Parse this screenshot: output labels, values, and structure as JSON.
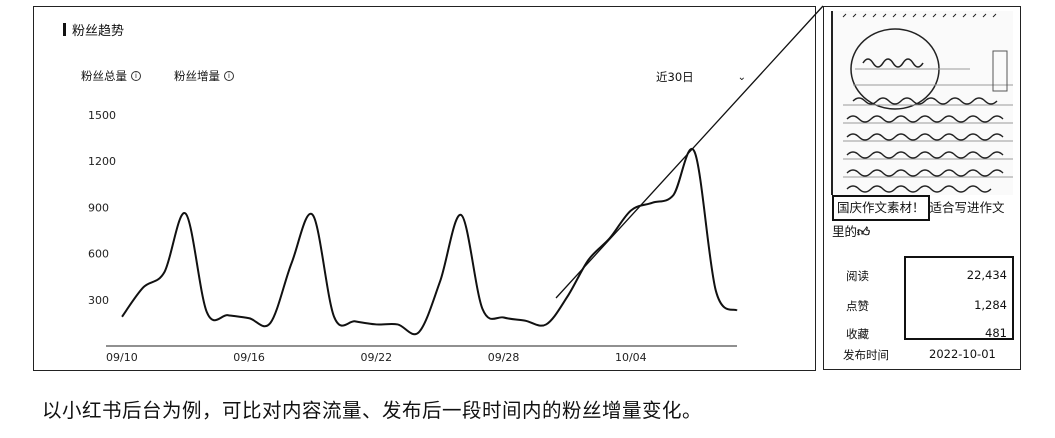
{
  "dashboard": {
    "section_title": "粉丝趋势",
    "tabs": [
      {
        "label": "粉丝总量",
        "info_icon": "info-circle-icon"
      },
      {
        "label": "粉丝增量",
        "info_icon": "info-circle-icon"
      }
    ],
    "range_select": {
      "value": "近30日",
      "icon": "chevron-down-icon"
    }
  },
  "chart_data": {
    "type": "line",
    "x_ticks": [
      "09/10",
      "09/16",
      "09/22",
      "09/28",
      "10/04"
    ],
    "y_ticks": [
      300,
      600,
      900,
      1200,
      1500
    ],
    "ylim": [
      0,
      1500
    ],
    "series": [
      {
        "values": [
          190,
          380,
          480,
          860,
          220,
          200,
          180,
          150,
          540,
          850,
          190,
          160,
          140,
          140,
          90,
          420,
          850,
          240,
          185,
          165,
          140,
          320,
          560,
          700,
          880,
          930,
          980,
          1260,
          360,
          230
        ]
      }
    ],
    "grid": false
  },
  "post_card": {
    "thumbnail_icon": "handwritten-note-image-icon",
    "title_highlight": "国庆作文素材！",
    "title_rest": "适合写进作文里的",
    "title_emoji_icon": "thumbs-up-emoji-icon",
    "metrics": [
      {
        "label": "阅读",
        "value": "22,434"
      },
      {
        "label": "点赞",
        "value": "1,284"
      },
      {
        "label": "收藏",
        "value": "481"
      }
    ],
    "publish": {
      "label": "发布时间",
      "value": "2022-10-01"
    }
  },
  "caption": "以小红书后台为例，可比对内容流量、发布后一段时间内的粉丝增量变化。"
}
